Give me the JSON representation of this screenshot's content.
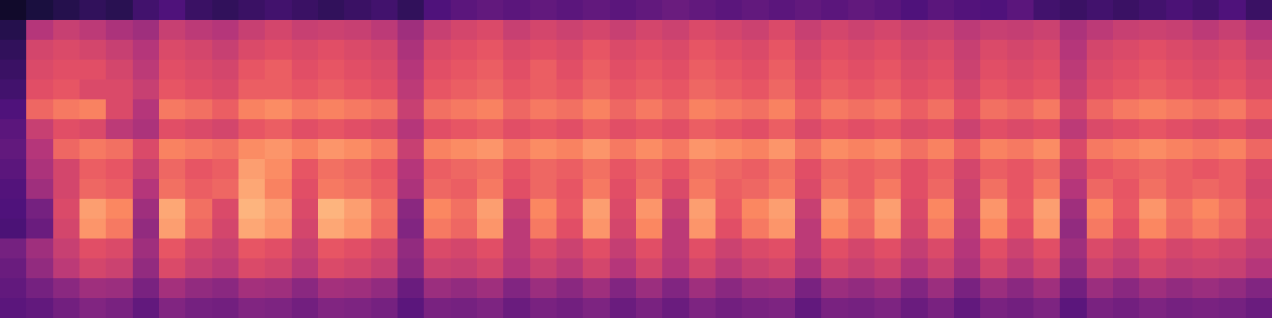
{
  "chart_data": {
    "type": "heatmap",
    "tick_labels": false,
    "zlim": [
      0,
      100
    ],
    "values": [
      [
        8,
        12,
        15,
        18,
        16,
        22,
        25,
        20,
        18,
        20,
        22,
        20,
        18,
        20,
        22,
        18,
        25,
        28,
        30,
        28,
        30,
        28,
        30,
        28,
        30,
        32,
        30,
        28,
        30,
        28,
        30,
        28,
        30,
        28,
        25,
        28,
        26,
        25,
        28,
        22,
        20,
        22,
        20,
        22,
        24,
        22,
        25,
        20
      ],
      [
        15,
        50,
        55,
        52,
        48,
        45,
        55,
        52,
        50,
        55,
        58,
        55,
        56,
        55,
        52,
        45,
        55,
        58,
        60,
        55,
        58,
        56,
        58,
        55,
        58,
        56,
        60,
        58,
        56,
        60,
        55,
        58,
        56,
        58,
        55,
        56,
        52,
        55,
        54,
        56,
        48,
        52,
        55,
        56,
        55,
        52,
        55,
        50
      ],
      [
        18,
        58,
        60,
        58,
        55,
        50,
        60,
        58,
        55,
        60,
        62,
        60,
        62,
        60,
        58,
        48,
        60,
        62,
        64,
        60,
        62,
        60,
        64,
        60,
        62,
        60,
        64,
        62,
        60,
        64,
        58,
        62,
        60,
        62,
        58,
        60,
        55,
        60,
        58,
        60,
        50,
        58,
        60,
        62,
        60,
        58,
        60,
        55
      ],
      [
        20,
        60,
        62,
        62,
        58,
        52,
        62,
        60,
        58,
        64,
        66,
        62,
        64,
        62,
        60,
        50,
        62,
        64,
        66,
        62,
        66,
        62,
        66,
        62,
        64,
        62,
        66,
        64,
        62,
        66,
        60,
        64,
        62,
        64,
        60,
        62,
        56,
        62,
        60,
        62,
        52,
        60,
        62,
        64,
        62,
        60,
        62,
        58
      ],
      [
        22,
        62,
        64,
        60,
        60,
        55,
        64,
        62,
        60,
        66,
        66,
        64,
        66,
        64,
        62,
        52,
        64,
        66,
        68,
        64,
        66,
        64,
        68,
        64,
        66,
        64,
        68,
        66,
        64,
        68,
        62,
        66,
        64,
        66,
        62,
        64,
        58,
        64,
        62,
        64,
        54,
        62,
        64,
        66,
        64,
        62,
        64,
        60
      ],
      [
        25,
        68,
        72,
        74,
        60,
        50,
        72,
        70,
        66,
        74,
        76,
        72,
        74,
        72,
        70,
        55,
        70,
        72,
        74,
        68,
        72,
        70,
        74,
        68,
        72,
        68,
        74,
        72,
        70,
        74,
        66,
        72,
        70,
        72,
        66,
        70,
        62,
        70,
        68,
        72,
        58,
        68,
        72,
        74,
        72,
        70,
        72,
        66
      ],
      [
        28,
        55,
        62,
        60,
        52,
        48,
        62,
        60,
        58,
        64,
        66,
        62,
        64,
        62,
        60,
        50,
        62,
        64,
        66,
        62,
        64,
        62,
        66,
        62,
        64,
        62,
        66,
        64,
        62,
        66,
        60,
        64,
        62,
        64,
        60,
        62,
        56,
        62,
        60,
        62,
        52,
        60,
        62,
        64,
        62,
        60,
        62,
        58
      ],
      [
        30,
        50,
        68,
        72,
        70,
        60,
        74,
        72,
        70,
        76,
        78,
        74,
        78,
        76,
        72,
        55,
        74,
        76,
        78,
        72,
        76,
        74,
        78,
        72,
        76,
        72,
        78,
        76,
        74,
        78,
        70,
        76,
        74,
        76,
        70,
        74,
        66,
        74,
        72,
        76,
        60,
        72,
        74,
        76,
        74,
        72,
        74,
        68
      ],
      [
        28,
        48,
        58,
        66,
        64,
        55,
        68,
        64,
        66,
        80,
        76,
        64,
        70,
        68,
        64,
        50,
        66,
        68,
        70,
        64,
        68,
        66,
        70,
        64,
        68,
        64,
        70,
        68,
        66,
        70,
        62,
        68,
        66,
        68,
        62,
        66,
        58,
        66,
        64,
        68,
        54,
        64,
        66,
        68,
        66,
        64,
        66,
        60
      ],
      [
        26,
        45,
        58,
        68,
        66,
        50,
        70,
        66,
        68,
        82,
        74,
        62,
        72,
        70,
        66,
        48,
        68,
        66,
        72,
        62,
        68,
        64,
        72,
        62,
        70,
        60,
        72,
        66,
        68,
        72,
        60,
        70,
        66,
        72,
        62,
        68,
        56,
        70,
        64,
        72,
        50,
        68,
        64,
        70,
        66,
        68,
        66,
        58
      ],
      [
        25,
        35,
        60,
        80,
        75,
        45,
        82,
        70,
        60,
        85,
        80,
        60,
        85,
        80,
        70,
        40,
        75,
        70,
        80,
        55,
        75,
        65,
        80,
        60,
        78,
        55,
        80,
        65,
        75,
        80,
        55,
        78,
        70,
        80,
        60,
        75,
        55,
        78,
        65,
        80,
        45,
        75,
        65,
        78,
        70,
        75,
        70,
        60
      ],
      [
        24,
        32,
        58,
        78,
        72,
        42,
        80,
        68,
        58,
        82,
        78,
        58,
        82,
        78,
        68,
        38,
        72,
        68,
        78,
        52,
        72,
        62,
        78,
        58,
        75,
        52,
        78,
        62,
        72,
        78,
        52,
        75,
        68,
        78,
        58,
        72,
        52,
        75,
        62,
        78,
        42,
        72,
        62,
        75,
        68,
        72,
        68,
        58
      ],
      [
        35,
        45,
        55,
        62,
        60,
        45,
        64,
        58,
        55,
        64,
        62,
        55,
        64,
        62,
        58,
        42,
        60,
        58,
        62,
        52,
        60,
        56,
        62,
        54,
        62,
        52,
        62,
        56,
        60,
        62,
        52,
        62,
        58,
        62,
        54,
        60,
        50,
        62,
        56,
        62,
        45,
        60,
        56,
        62,
        58,
        60,
        58,
        54
      ],
      [
        32,
        42,
        52,
        58,
        56,
        42,
        60,
        55,
        52,
        60,
        58,
        52,
        60,
        58,
        55,
        40,
        56,
        55,
        58,
        50,
        56,
        52,
        58,
        50,
        58,
        50,
        58,
        52,
        56,
        58,
        48,
        58,
        55,
        58,
        50,
        56,
        48,
        58,
        52,
        58,
        42,
        56,
        52,
        58,
        55,
        56,
        55,
        50
      ],
      [
        30,
        35,
        40,
        45,
        44,
        36,
        46,
        42,
        40,
        46,
        45,
        40,
        46,
        45,
        42,
        32,
        44,
        42,
        45,
        38,
        44,
        40,
        45,
        38,
        44,
        38,
        45,
        40,
        44,
        45,
        36,
        44,
        42,
        45,
        38,
        44,
        36,
        44,
        40,
        45,
        34,
        44,
        40,
        45,
        42,
        44,
        42,
        38
      ],
      [
        28,
        30,
        34,
        38,
        36,
        30,
        38,
        35,
        34,
        38,
        37,
        34,
        38,
        37,
        35,
        28,
        36,
        35,
        37,
        32,
        36,
        34,
        37,
        32,
        36,
        32,
        37,
        34,
        36,
        37,
        30,
        36,
        35,
        37,
        32,
        36,
        30,
        36,
        34,
        37,
        28,
        36,
        34,
        37,
        35,
        36,
        35,
        32
      ]
    ]
  }
}
